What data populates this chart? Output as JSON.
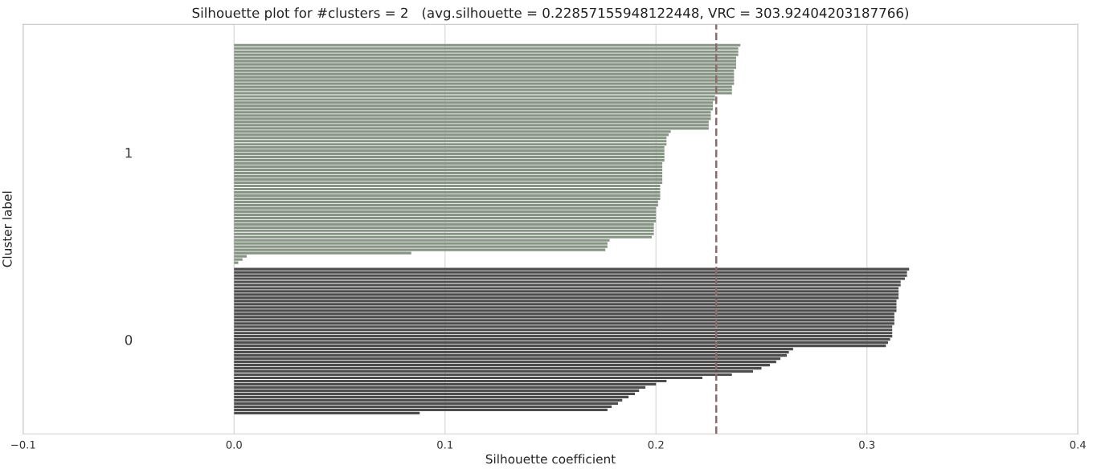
{
  "chart_data": {
    "type": "bar",
    "orientation": "horizontal",
    "title": "Silhouette plot for #clusters = 2   (avg.silhouette = 0.22857155948122448, VRC = 303.92404203187766)",
    "xlabel": "Silhouette coefficient",
    "ylabel": "Cluster label",
    "categories": [
      null,
      null,
      null,
      null,
      null,
      null,
      null,
      null,
      null,
      null,
      null,
      null,
      null,
      null,
      null,
      null,
      null,
      null,
      null,
      null,
      null,
      null,
      null,
      null,
      null,
      null,
      null,
      null,
      null,
      null,
      null,
      null,
      null,
      null,
      null,
      null,
      null,
      null,
      null,
      null,
      null,
      null,
      null,
      null,
      null,
      null,
      null,
      null,
      null,
      null,
      null,
      null,
      null,
      null,
      null,
      null,
      null,
      null,
      null,
      null,
      null,
      null,
      null,
      null,
      null,
      null,
      null,
      null,
      null,
      null,
      null,
      null,
      null,
      null,
      null,
      null,
      null,
      null,
      null,
      null,
      null,
      null,
      null,
      null,
      null,
      null,
      null,
      null,
      null,
      null,
      null,
      null,
      null,
      null,
      null,
      null,
      null,
      null,
      null,
      null,
      null,
      null,
      null,
      null,
      null,
      null,
      null,
      null,
      null,
      null,
      null,
      null,
      null,
      null,
      null,
      null,
      null,
      null,
      null,
      null,
      null,
      null,
      null,
      null,
      null,
      null,
      null,
      null
    ],
    "series": [
      {
        "color": "#879585",
        "values": [
          null,
          null,
          null,
          null,
          null,
          null,
          0.24,
          0.239,
          0.239,
          0.239,
          0.238,
          0.238,
          0.238,
          0.238,
          0.237,
          0.237,
          0.237,
          0.237,
          0.237,
          0.236,
          0.236,
          0.236,
          0.228,
          0.228,
          0.227,
          0.227,
          0.227,
          0.226,
          0.226,
          0.226,
          0.225,
          0.225,
          0.225,
          0.207,
          0.206,
          0.205,
          0.205,
          0.205,
          0.204,
          0.204,
          0.204,
          0.204,
          0.204,
          0.203,
          0.203,
          0.203,
          0.203,
          0.203,
          0.203,
          0.203,
          0.202,
          0.202,
          0.202,
          0.202,
          0.202,
          0.201,
          0.201,
          0.2,
          0.2,
          0.2,
          0.2,
          0.2,
          0.199,
          0.199,
          0.199,
          0.199,
          0.198,
          0.178,
          0.177,
          0.177,
          0.176,
          0.084,
          0.006,
          0.004,
          0.002,
          null,
          null,
          null,
          null,
          null,
          null,
          null,
          null,
          null,
          null,
          null,
          null,
          null,
          null,
          null,
          null,
          null,
          null,
          null,
          null,
          null,
          null,
          null,
          null,
          null,
          null,
          null,
          null,
          null,
          null,
          null,
          null,
          null,
          null,
          null,
          null,
          null,
          null,
          null,
          null,
          null,
          null,
          null,
          null,
          null,
          null,
          null,
          null,
          null,
          null,
          null,
          null,
          null
        ]
      },
      {
        "color": "#4d4d4d",
        "values": [
          null,
          null,
          null,
          null,
          null,
          null,
          null,
          null,
          null,
          null,
          null,
          null,
          null,
          null,
          null,
          null,
          null,
          null,
          null,
          null,
          null,
          null,
          null,
          null,
          null,
          null,
          null,
          null,
          null,
          null,
          null,
          null,
          null,
          null,
          null,
          null,
          null,
          null,
          null,
          null,
          null,
          null,
          null,
          null,
          null,
          null,
          null,
          null,
          null,
          null,
          null,
          null,
          null,
          null,
          null,
          null,
          null,
          null,
          null,
          null,
          null,
          null,
          null,
          null,
          null,
          null,
          null,
          null,
          null,
          null,
          null,
          null,
          null,
          null,
          null,
          null,
          0.32,
          0.319,
          0.319,
          0.318,
          0.316,
          0.316,
          0.315,
          0.315,
          0.315,
          0.315,
          0.314,
          0.314,
          0.314,
          0.314,
          0.313,
          0.313,
          0.313,
          0.313,
          0.312,
          0.312,
          0.312,
          0.312,
          0.311,
          0.31,
          0.309,
          0.265,
          0.263,
          0.262,
          0.259,
          0.257,
          0.254,
          0.25,
          0.246,
          0.236,
          0.222,
          0.205,
          0.2,
          0.195,
          0.192,
          0.19,
          0.187,
          0.184,
          0.182,
          0.179,
          0.177,
          0.088,
          null,
          null,
          null,
          null,
          null,
          null
        ]
      }
    ],
    "xlim": [
      -0.1,
      0.4
    ],
    "xticks": [
      {
        "value": -0.1,
        "label": "−0.1"
      },
      {
        "value": 0,
        "label": "0.0"
      },
      0.1,
      0.2,
      0.3,
      0.4
    ],
    "annotations": [
      "1",
      "0"
    ],
    "ref_lines": [
      {
        "axis": "x",
        "value": 0.22857155948122448,
        "color": "#8b6b6b",
        "line_style": "dashed"
      }
    ],
    "grid": "x",
    "legend": false
  }
}
